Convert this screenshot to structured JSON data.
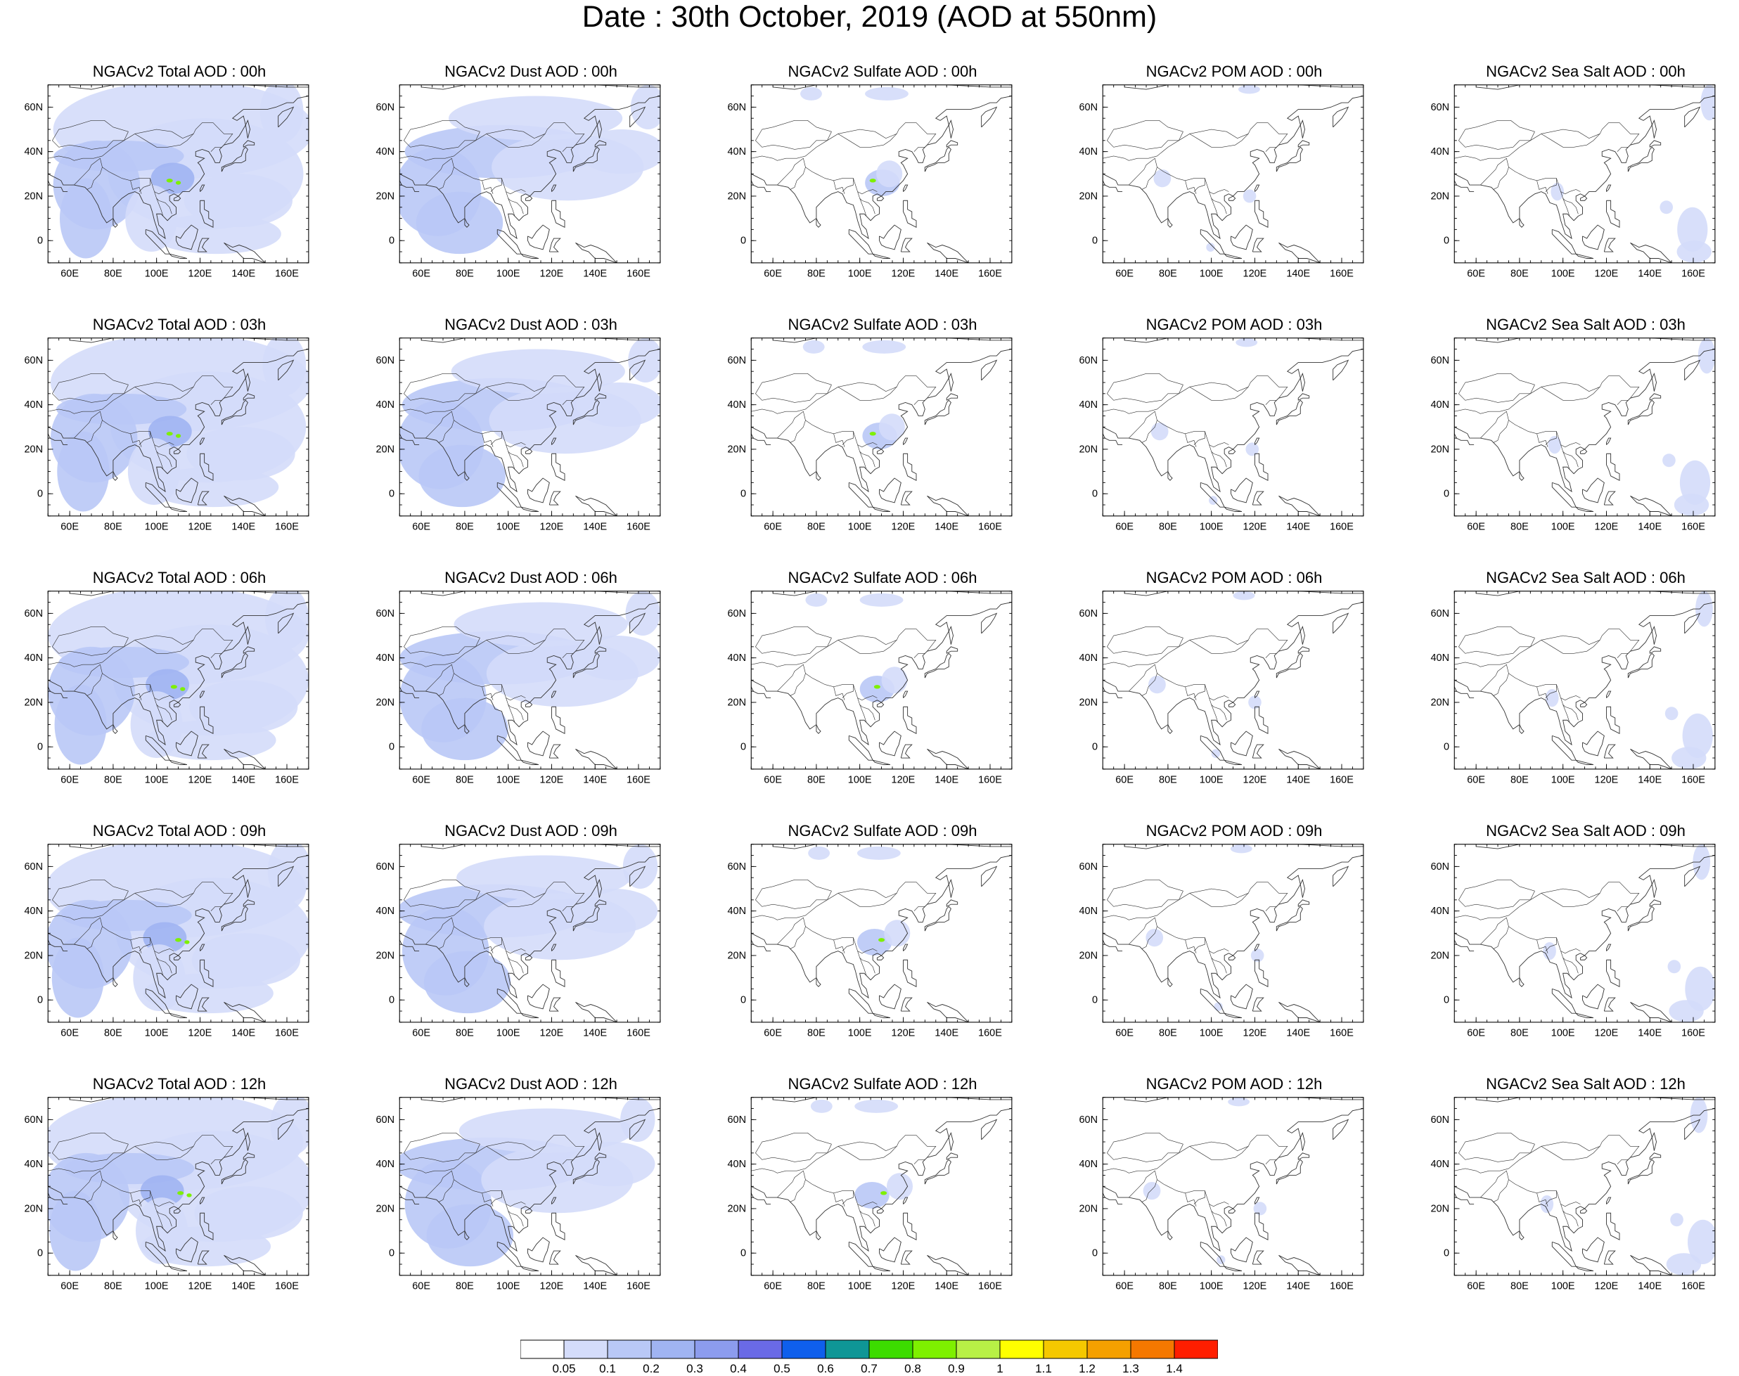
{
  "title": "Date : 30th October, 2019 (AOD at 550nm)",
  "panel_titles": [
    [
      "NGACv2 Total AOD : 00h",
      "NGACv2 Dust AOD : 00h",
      "NGACv2 Sulfate AOD : 00h",
      "NGACv2 POM AOD : 00h",
      "NGACv2 Sea Salt AOD : 00h"
    ],
    [
      "NGACv2 Total AOD : 03h",
      "NGACv2 Dust AOD : 03h",
      "NGACv2 Sulfate AOD : 03h",
      "NGACv2 POM AOD : 03h",
      "NGACv2 Sea Salt AOD : 03h"
    ],
    [
      "NGACv2 Total AOD : 06h",
      "NGACv2 Dust AOD : 06h",
      "NGACv2 Sulfate AOD : 06h",
      "NGACv2 POM AOD : 06h",
      "NGACv2 Sea Salt AOD : 06h"
    ],
    [
      "NGACv2 Total AOD : 09h",
      "NGACv2 Dust AOD : 09h",
      "NGACv2 Sulfate AOD : 09h",
      "NGACv2 POM AOD : 09h",
      "NGACv2 Sea Salt  AOD : 09h"
    ],
    [
      "NGACv2 Total AOD  : 12h",
      "NGACv2 Dust AOD : 12h",
      "NGACv2 Sulfate AOD : 12h",
      "NGACv2 POM  AOD : 12h",
      "NGACv2 Sea Salt  AOD : 12h"
    ]
  ],
  "axes": {
    "lon_ticks": [
      "60E",
      "80E",
      "100E",
      "120E",
      "140E",
      "160E"
    ],
    "lat_ticks": [
      "60N",
      "40N",
      "20N",
      "0"
    ]
  },
  "colorbar": {
    "labels": [
      "0.05",
      "0.1",
      "0.2",
      "0.3",
      "0.4",
      "0.5",
      "0.6",
      "0.7",
      "0.8",
      "0.9",
      "1",
      "1.1",
      "1.2",
      "1.3",
      "1.4"
    ],
    "colors": [
      "#ffffff",
      "#d4dcfa",
      "#b9c8f6",
      "#a0b4f2",
      "#8c9cee",
      "#6a6ae6",
      "#0f5fec",
      "#0f9696",
      "#3cdc00",
      "#7ef000",
      "#b8f046",
      "#ffff00",
      "#f5c800",
      "#f5a000",
      "#f57800",
      "#ff1e00"
    ]
  },
  "colors": {
    "light": "#d4dcfa",
    "medium": "#b9c8f6",
    "strong": "#a0b4f2",
    "hot": "#7ef000",
    "coast": "#333333"
  }
}
